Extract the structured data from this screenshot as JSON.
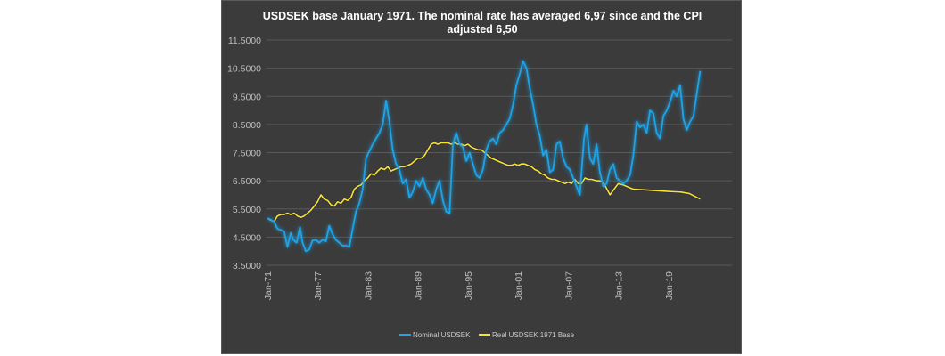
{
  "chart_data": {
    "type": "line",
    "title_lines": [
      "USDSEK base January 1971. The nominal rate has averaged 6,97 since and the CPI",
      "adjusted 6,50"
    ],
    "xlabel": "",
    "ylabel": "",
    "ylim": [
      3.5,
      11.5
    ],
    "yticks": [
      "11.5000",
      "10.5000",
      "9.5000",
      "8.5000",
      "7.5000",
      "6.5000",
      "5.5000",
      "4.5000",
      "3.5000"
    ],
    "ytick_values": [
      11.5,
      10.5,
      9.5,
      8.5,
      7.5,
      6.5,
      5.5,
      4.5,
      3.5
    ],
    "xlim": [
      1970.7,
      2025.0
    ],
    "xticks": [
      "Jan-71",
      "Jan-77",
      "Jan-83",
      "Jan-89",
      "Jan-95",
      "Jan-01",
      "Jan-07",
      "Jan-13",
      "Jan-19"
    ],
    "xtick_values": [
      1971,
      1977,
      1983,
      1989,
      1995,
      2001,
      2007,
      2013,
      2019
    ],
    "grid": "horizontal",
    "legend": "bottom",
    "colors": {
      "background": "#3b3b3b",
      "nominal": "#1fa3e8",
      "real": "#f5e62a"
    },
    "series": [
      {
        "name": "Nominal USDSEK",
        "color": "#1fa3e8",
        "points": [
          [
            1971.0,
            5.17
          ],
          [
            1971.4,
            5.12
          ],
          [
            1971.8,
            5.05
          ],
          [
            1972.2,
            4.8
          ],
          [
            1972.6,
            4.75
          ],
          [
            1973.0,
            4.7
          ],
          [
            1973.4,
            4.15
          ],
          [
            1973.8,
            4.65
          ],
          [
            1974.1,
            4.4
          ],
          [
            1974.5,
            4.3
          ],
          [
            1974.9,
            4.85
          ],
          [
            1975.2,
            4.3
          ],
          [
            1975.6,
            4.0
          ],
          [
            1976.0,
            4.05
          ],
          [
            1976.4,
            4.38
          ],
          [
            1976.8,
            4.4
          ],
          [
            1977.2,
            4.3
          ],
          [
            1977.6,
            4.4
          ],
          [
            1978.0,
            4.35
          ],
          [
            1978.4,
            4.9
          ],
          [
            1978.8,
            4.6
          ],
          [
            1979.2,
            4.4
          ],
          [
            1979.6,
            4.3
          ],
          [
            1980.0,
            4.2
          ],
          [
            1980.4,
            4.2
          ],
          [
            1980.8,
            4.15
          ],
          [
            1981.2,
            4.8
          ],
          [
            1981.6,
            5.4
          ],
          [
            1982.0,
            5.7
          ],
          [
            1982.4,
            6.2
          ],
          [
            1982.8,
            7.3
          ],
          [
            1983.2,
            7.55
          ],
          [
            1983.6,
            7.8
          ],
          [
            1984.0,
            8.0
          ],
          [
            1984.4,
            8.2
          ],
          [
            1984.8,
            8.5
          ],
          [
            1985.2,
            9.35
          ],
          [
            1985.6,
            8.6
          ],
          [
            1986.0,
            7.6
          ],
          [
            1986.4,
            7.1
          ],
          [
            1986.8,
            6.9
          ],
          [
            1987.2,
            6.4
          ],
          [
            1987.6,
            6.55
          ],
          [
            1988.0,
            5.9
          ],
          [
            1988.4,
            6.1
          ],
          [
            1988.8,
            6.5
          ],
          [
            1989.2,
            6.3
          ],
          [
            1989.6,
            6.6
          ],
          [
            1990.0,
            6.2
          ],
          [
            1990.4,
            6.0
          ],
          [
            1990.8,
            5.7
          ],
          [
            1991.2,
            6.2
          ],
          [
            1991.6,
            6.5
          ],
          [
            1992.0,
            5.8
          ],
          [
            1992.4,
            5.4
          ],
          [
            1992.8,
            5.35
          ],
          [
            1993.2,
            7.8
          ],
          [
            1993.6,
            8.2
          ],
          [
            1994.0,
            7.8
          ],
          [
            1994.4,
            7.7
          ],
          [
            1994.8,
            7.2
          ],
          [
            1995.2,
            7.5
          ],
          [
            1995.6,
            7.1
          ],
          [
            1996.0,
            6.7
          ],
          [
            1996.4,
            6.6
          ],
          [
            1996.8,
            6.9
          ],
          [
            1997.2,
            7.6
          ],
          [
            1997.6,
            7.9
          ],
          [
            1998.0,
            8.0
          ],
          [
            1998.4,
            7.8
          ],
          [
            1998.8,
            8.2
          ],
          [
            1999.2,
            8.3
          ],
          [
            1999.6,
            8.5
          ],
          [
            2000.0,
            8.7
          ],
          [
            2000.4,
            9.2
          ],
          [
            2000.8,
            9.9
          ],
          [
            2001.2,
            10.3
          ],
          [
            2001.6,
            10.75
          ],
          [
            2002.0,
            10.5
          ],
          [
            2002.4,
            9.8
          ],
          [
            2002.8,
            9.2
          ],
          [
            2003.2,
            8.5
          ],
          [
            2003.6,
            8.1
          ],
          [
            2004.0,
            7.4
          ],
          [
            2004.4,
            7.6
          ],
          [
            2004.8,
            6.8
          ],
          [
            2005.2,
            6.9
          ],
          [
            2005.6,
            7.8
          ],
          [
            2006.0,
            7.9
          ],
          [
            2006.4,
            7.3
          ],
          [
            2006.8,
            7.0
          ],
          [
            2007.2,
            6.9
          ],
          [
            2007.6,
            6.6
          ],
          [
            2008.0,
            6.3
          ],
          [
            2008.4,
            6.0
          ],
          [
            2008.9,
            8.0
          ],
          [
            2009.2,
            8.5
          ],
          [
            2009.6,
            7.3
          ],
          [
            2010.0,
            7.1
          ],
          [
            2010.4,
            7.8
          ],
          [
            2010.8,
            6.8
          ],
          [
            2011.2,
            6.3
          ],
          [
            2011.6,
            6.4
          ],
          [
            2012.0,
            6.9
          ],
          [
            2012.4,
            7.1
          ],
          [
            2012.8,
            6.6
          ],
          [
            2013.2,
            6.5
          ],
          [
            2013.6,
            6.4
          ],
          [
            2014.0,
            6.5
          ],
          [
            2014.4,
            6.7
          ],
          [
            2014.8,
            7.4
          ],
          [
            2015.2,
            8.6
          ],
          [
            2015.6,
            8.4
          ],
          [
            2016.0,
            8.5
          ],
          [
            2016.4,
            8.2
          ],
          [
            2016.8,
            9.0
          ],
          [
            2017.2,
            8.9
          ],
          [
            2017.6,
            8.2
          ],
          [
            2018.0,
            8.0
          ],
          [
            2018.4,
            8.8
          ],
          [
            2018.8,
            9.0
          ],
          [
            2019.2,
            9.3
          ],
          [
            2019.6,
            9.7
          ],
          [
            2020.0,
            9.5
          ],
          [
            2020.4,
            9.9
          ],
          [
            2020.8,
            8.7
          ],
          [
            2021.2,
            8.3
          ],
          [
            2021.6,
            8.6
          ],
          [
            2022.0,
            8.8
          ],
          [
            2022.4,
            9.6
          ],
          [
            2022.8,
            10.4
          ]
        ]
      },
      {
        "name": "Real USDSEK 1971 Base",
        "color": "#f5e62a",
        "points": [
          [
            1971.0,
            5.17
          ],
          [
            1971.4,
            5.1
          ],
          [
            1971.8,
            5.05
          ],
          [
            1972.2,
            5.25
          ],
          [
            1972.6,
            5.3
          ],
          [
            1973.0,
            5.3
          ],
          [
            1973.4,
            5.35
          ],
          [
            1973.8,
            5.3
          ],
          [
            1974.2,
            5.35
          ],
          [
            1974.6,
            5.25
          ],
          [
            1975.0,
            5.2
          ],
          [
            1975.4,
            5.25
          ],
          [
            1975.8,
            5.35
          ],
          [
            1976.2,
            5.45
          ],
          [
            1976.6,
            5.6
          ],
          [
            1977.0,
            5.75
          ],
          [
            1977.4,
            6.0
          ],
          [
            1977.8,
            5.85
          ],
          [
            1978.2,
            5.8
          ],
          [
            1978.6,
            5.65
          ],
          [
            1979.0,
            5.6
          ],
          [
            1979.4,
            5.75
          ],
          [
            1979.8,
            5.7
          ],
          [
            1980.2,
            5.85
          ],
          [
            1980.6,
            5.8
          ],
          [
            1981.0,
            5.9
          ],
          [
            1981.4,
            6.2
          ],
          [
            1981.8,
            6.3
          ],
          [
            1982.2,
            6.35
          ],
          [
            1982.6,
            6.5
          ],
          [
            1983.0,
            6.6
          ],
          [
            1983.4,
            6.75
          ],
          [
            1983.8,
            6.7
          ],
          [
            1984.2,
            6.85
          ],
          [
            1984.6,
            6.95
          ],
          [
            1985.0,
            6.9
          ],
          [
            1985.4,
            7.0
          ],
          [
            1985.8,
            6.85
          ],
          [
            1986.2,
            6.9
          ],
          [
            1986.6,
            6.95
          ],
          [
            1987.0,
            7.0
          ],
          [
            1987.4,
            7.0
          ],
          [
            1987.8,
            7.05
          ],
          [
            1988.2,
            7.1
          ],
          [
            1988.6,
            7.2
          ],
          [
            1989.0,
            7.3
          ],
          [
            1989.4,
            7.3
          ],
          [
            1989.8,
            7.4
          ],
          [
            1990.2,
            7.6
          ],
          [
            1990.6,
            7.8
          ],
          [
            1991.0,
            7.85
          ],
          [
            1991.4,
            7.8
          ],
          [
            1991.8,
            7.85
          ],
          [
            1992.2,
            7.85
          ],
          [
            1992.6,
            7.85
          ],
          [
            1993.0,
            7.8
          ],
          [
            1993.4,
            7.85
          ],
          [
            1993.8,
            7.8
          ],
          [
            1994.2,
            7.8
          ],
          [
            1994.6,
            7.75
          ],
          [
            1995.0,
            7.8
          ],
          [
            1995.4,
            7.7
          ],
          [
            1995.8,
            7.65
          ],
          [
            1996.2,
            7.6
          ],
          [
            1996.6,
            7.6
          ],
          [
            1997.0,
            7.5
          ],
          [
            1997.4,
            7.4
          ],
          [
            1997.8,
            7.3
          ],
          [
            1998.2,
            7.25
          ],
          [
            1998.6,
            7.2
          ],
          [
            1999.0,
            7.15
          ],
          [
            1999.4,
            7.1
          ],
          [
            1999.8,
            7.05
          ],
          [
            2000.2,
            7.05
          ],
          [
            2000.6,
            7.1
          ],
          [
            2001.0,
            7.05
          ],
          [
            2001.4,
            7.1
          ],
          [
            2001.8,
            7.1
          ],
          [
            2002.2,
            7.05
          ],
          [
            2002.6,
            7.0
          ],
          [
            2003.0,
            6.9
          ],
          [
            2003.4,
            6.85
          ],
          [
            2003.8,
            6.75
          ],
          [
            2004.2,
            6.7
          ],
          [
            2004.6,
            6.6
          ],
          [
            2005.0,
            6.55
          ],
          [
            2005.4,
            6.55
          ],
          [
            2005.8,
            6.5
          ],
          [
            2006.2,
            6.45
          ],
          [
            2006.6,
            6.4
          ],
          [
            2007.0,
            6.45
          ],
          [
            2007.4,
            6.4
          ],
          [
            2007.8,
            6.55
          ],
          [
            2008.2,
            6.4
          ],
          [
            2008.6,
            6.4
          ],
          [
            2009.0,
            6.6
          ],
          [
            2009.4,
            6.55
          ],
          [
            2009.8,
            6.55
          ],
          [
            2010.4,
            6.5
          ],
          [
            2010.8,
            6.5
          ],
          [
            2011.2,
            6.45
          ],
          [
            2012.0,
            6.0
          ],
          [
            2013.0,
            6.4
          ],
          [
            2013.6,
            6.35
          ],
          [
            2014.8,
            6.2
          ],
          [
            2016.0,
            6.18
          ],
          [
            2017.5,
            6.15
          ],
          [
            2019.0,
            6.12
          ],
          [
            2020.5,
            6.1
          ],
          [
            2021.5,
            6.05
          ],
          [
            2022.8,
            5.85
          ]
        ]
      }
    ]
  }
}
